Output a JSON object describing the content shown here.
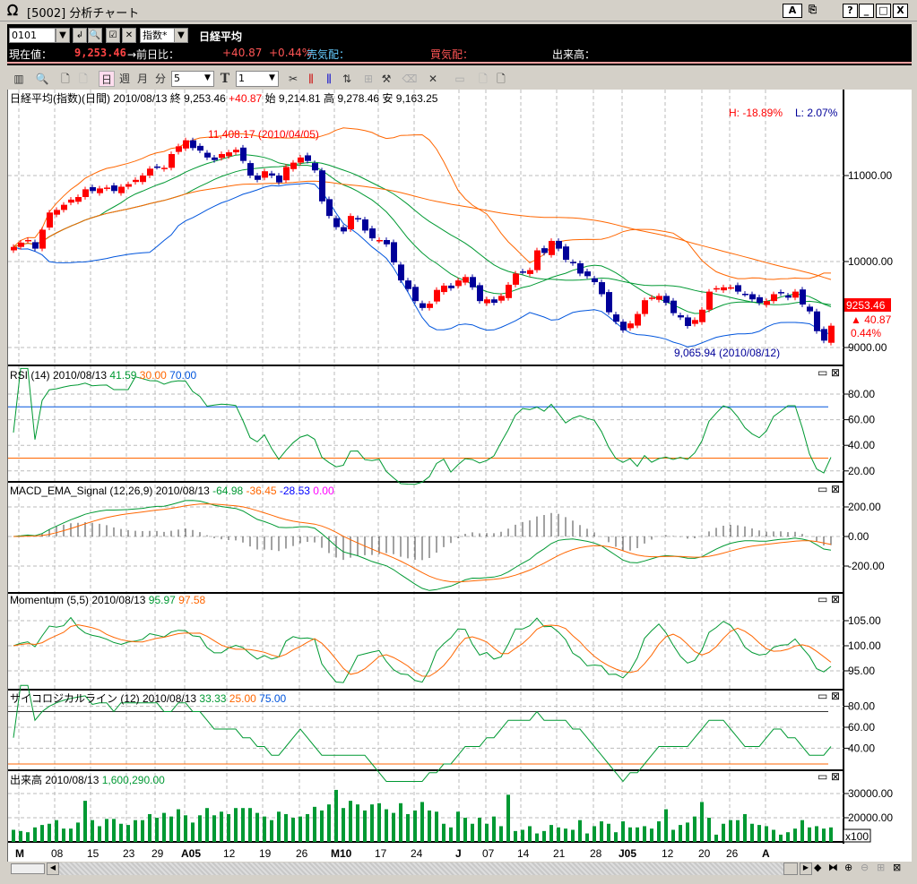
{
  "window": {
    "title": "[5002] 分析チャート",
    "buttons": [
      "A",
      "⎘",
      "?",
      "_",
      "□",
      "X"
    ]
  },
  "info": {
    "code": "0101",
    "type": "指数*",
    "name": "日経平均",
    "current_label": "現在値：",
    "current": "9,253.46",
    "prev_label": "→前日比：",
    "change": "+40.87",
    "change_pct": "+0.44%",
    "ask_label": "売気配：",
    "bid_label": "買気配：",
    "volume_label": "出来高："
  },
  "toolbar": {
    "day": "日",
    "week": "週",
    "month": "月",
    "minute": "分",
    "minute_value": "5",
    "t_label": "T",
    "t_value": "1"
  },
  "main": {
    "header": {
      "name": "日経平均(指数)(日間)",
      "date": "2010/08/13",
      "close_label": "終",
      "close": "9,253.46",
      "change": "+40.87",
      "open_label": "始",
      "open": "9,214.81",
      "high_label": "高",
      "high": "9,278.46",
      "low_label": "安",
      "low": "9,163.25"
    },
    "hl": {
      "h": "H: -18.89%",
      "l": "L: 2.07%"
    },
    "high_annot": "11,408.17 (2010/04/05)",
    "low_annot": "9,065.94 (2010/08/12)",
    "last": {
      "price": "9253.46",
      "change": "40.87",
      "pct": "0.44%"
    },
    "yticks": [
      "11000.00",
      "10000.00",
      "9000.00"
    ]
  },
  "rsi": {
    "label": "RSI (14) 2010/08/13",
    "v1": "41.59",
    "v2": "30.00",
    "v3": "70.00",
    "yticks": [
      "80.00",
      "60.00",
      "40.00",
      "20.00"
    ]
  },
  "macd": {
    "label": "MACD_EMA_Signal (12,26,9) 2010/08/13",
    "v1": "-64.98",
    "v2": "-36.45",
    "v3": "-28.53",
    "v4": "0.00",
    "yticks": [
      "200.00",
      "0.00",
      "-200.00"
    ]
  },
  "mom": {
    "label": "Momentum (5,5) 2010/08/13",
    "v1": "95.97",
    "v2": "97.58",
    "yticks": [
      "105.00",
      "100.00",
      "95.00"
    ]
  },
  "psy": {
    "label": "サイコロジカルライン (12) 2010/08/13",
    "v1": "33.33",
    "v2": "25.00",
    "v3": "75.00",
    "yticks": [
      "80.00",
      "60.00",
      "40.00"
    ]
  },
  "vol": {
    "label": "出来高 2010/08/13",
    "v1": "1,600,290.00",
    "yticks": [
      "30000.00",
      "20000.00"
    ],
    "unit": "x100"
  },
  "dates": [
    "M",
    "08",
    "15",
    "23",
    "29",
    "A05",
    "12",
    "19",
    "26",
    "M10",
    "17",
    "24",
    "J",
    "07",
    "14",
    "21",
    "28",
    "J05",
    "12",
    "20",
    "26",
    "A"
  ],
  "colors": {
    "up": "#ff0000",
    "down": "#000099",
    "green": "#009933",
    "orange": "#ff6600",
    "blue": "#0055dd",
    "black_bg": "#000000"
  },
  "chart_data": {
    "type": "candlestick",
    "closes": [
      10170,
      10220,
      10250,
      10150,
      10370,
      10570,
      10600,
      10660,
      10720,
      10750,
      10840,
      10820,
      10850,
      10860,
      10820,
      10870,
      10900,
      10950,
      11000,
      11080,
      11100,
      11090,
      11250,
      11340,
      11410,
      11320,
      11290,
      11210,
      11180,
      11250,
      11270,
      11300,
      11170,
      11000,
      10950,
      11050,
      11000,
      10920,
      11100,
      11150,
      11210,
      11170,
      11060,
      10700,
      10530,
      10400,
      10350,
      10530,
      10490,
      10360,
      10270,
      10250,
      10200,
      9990,
      9780,
      9680,
      9540,
      9460,
      9510,
      9670,
      9720,
      9690,
      9780,
      9820,
      9700,
      9540,
      9560,
      9520,
      9600,
      9730,
      9860,
      9880,
      9900,
      10130,
      10100,
      10240,
      10150,
      10020,
      9980,
      9860,
      9830,
      9760,
      9620,
      9410,
      9300,
      9200,
      9280,
      9390,
      9550,
      9580,
      9600,
      9520,
      9400,
      9350,
      9250,
      9320,
      9440,
      9650,
      9690,
      9700,
      9700,
      9650,
      9620,
      9560,
      9520,
      9540,
      9620,
      9630,
      9580,
      9650,
      9500,
      9420,
      9190,
      9080,
      9253.46
    ],
    "volumes": [
      15000,
      14500,
      14000,
      16000,
      17000,
      17500,
      19000,
      15500,
      15500,
      18000,
      27000,
      19000,
      16500,
      19500,
      19500,
      17500,
      17000,
      19000,
      19000,
      21500,
      20000,
      22000,
      20500,
      23500,
      21000,
      18000,
      21000,
      24000,
      21000,
      22500,
      21500,
      24000,
      24000,
      24000,
      22000,
      20500,
      19000,
      22500,
      21500,
      20000,
      20500,
      21500,
      24500,
      23000,
      25500,
      31500,
      24000,
      27000,
      25500,
      23000,
      25500,
      26000,
      23500,
      22000,
      26000,
      21500,
      23000,
      26500,
      23000,
      22500,
      17500,
      16000,
      22500,
      20000,
      17500,
      20000,
      17500,
      20500,
      16500,
      29500,
      14500,
      15000,
      16500,
      13500,
      14500,
      17000,
      16000,
      15500,
      15000,
      19000,
      13500,
      16500,
      18500,
      17500,
      14000,
      18500,
      16000,
      16000,
      16500,
      15500,
      18500,
      23500,
      15000,
      17000,
      18000,
      20500,
      26500,
      20000,
      13000,
      17500,
      19000,
      19000,
      21500,
      17500,
      17000,
      16500,
      15000,
      13000,
      14000,
      15500,
      19000,
      16000,
      16500,
      15500,
      16000
    ],
    "ylim": [
      9000,
      11700
    ]
  }
}
